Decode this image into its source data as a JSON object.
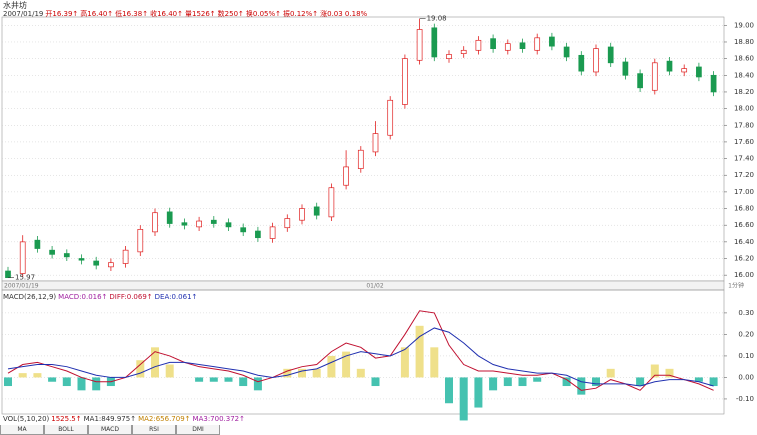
{
  "header": {
    "title": "水井坊",
    "info": [
      "2007/01/19",
      "开16.39↑",
      "高16.40↑",
      "低16.38↑",
      "收16.40↑",
      "量1526↑",
      "数250↑",
      "换0.05%↑",
      "振0.12%↑",
      "涨0.03 0.18%"
    ],
    "x_labels": [
      "2007/01/19",
      "01/02",
      "1分钟"
    ],
    "macd_legend": [
      "MACD(26,12,9)",
      "MACD:0.016↑",
      "DIFF:0.069↑",
      "DEA:0.061↑"
    ],
    "vol_legend": [
      "VOL(5,10,20)",
      "1525.5↑",
      "MA1:849.975↑",
      "MA2:656.709↑",
      "MA3:700.372↑"
    ],
    "tabs": [
      "MA",
      "BOLL",
      "MACD",
      "RSI",
      "DMI"
    ]
  },
  "chart_data": [
    {
      "type": "candlestick",
      "up_color": "#e02020",
      "down_color": "#1a9a50",
      "grid": true,
      "ylim": [
        15.93,
        19.1
      ],
      "yticks": [
        {
          "value": 16.0,
          "label": "16.00"
        },
        {
          "value": 16.2,
          "label": "16.20"
        },
        {
          "value": 16.4,
          "label": "16.40"
        },
        {
          "value": 16.6,
          "label": "16.60"
        },
        {
          "value": 16.8,
          "label": "16.80"
        },
        {
          "value": 17.0,
          "label": "17.00"
        },
        {
          "value": 17.2,
          "label": "17.20"
        },
        {
          "value": 17.4,
          "label": "17.40"
        },
        {
          "value": 17.6,
          "label": "17.60"
        },
        {
          "value": 17.8,
          "label": "17.80"
        },
        {
          "value": 18.0,
          "label": "18.00"
        },
        {
          "value": 18.2,
          "label": "18.20"
        },
        {
          "value": 18.4,
          "label": "18.40"
        },
        {
          "value": 18.6,
          "label": "18.60"
        },
        {
          "value": 18.8,
          "label": "18.80"
        },
        {
          "value": 19.0,
          "label": "19.00"
        }
      ],
      "open": [
        16.05,
        16.02,
        16.42,
        16.3,
        16.26,
        16.2,
        16.17,
        16.1,
        16.14,
        16.28,
        16.52,
        16.76,
        16.63,
        16.58,
        16.66,
        16.63,
        16.57,
        16.53,
        16.44,
        16.57,
        16.66,
        16.82,
        16.7,
        17.08,
        17.28,
        17.48,
        17.68,
        18.05,
        18.58,
        18.97,
        18.6,
        18.66,
        18.7,
        18.84,
        18.7,
        18.79,
        18.7,
        18.86,
        18.74,
        18.64,
        18.44,
        18.74,
        18.56,
        18.42,
        18.22,
        18.57,
        18.44,
        18.5,
        18.4
      ],
      "high": [
        16.1,
        16.48,
        16.47,
        16.35,
        16.31,
        16.25,
        16.22,
        16.2,
        16.35,
        16.6,
        16.8,
        16.81,
        16.68,
        16.7,
        16.71,
        16.68,
        16.62,
        16.58,
        16.63,
        16.73,
        16.85,
        16.87,
        17.1,
        17.5,
        17.55,
        17.85,
        18.15,
        18.65,
        19.08,
        19.02,
        18.7,
        18.75,
        18.87,
        18.89,
        18.83,
        18.84,
        18.9,
        18.91,
        18.79,
        18.69,
        18.77,
        18.79,
        18.61,
        18.47,
        18.6,
        18.62,
        18.53,
        18.55,
        18.45
      ],
      "low": [
        15.97,
        15.98,
        16.27,
        16.2,
        16.17,
        16.13,
        16.07,
        16.05,
        16.09,
        16.23,
        16.47,
        16.57,
        16.55,
        16.53,
        16.57,
        16.53,
        16.47,
        16.4,
        16.39,
        16.52,
        16.61,
        16.67,
        16.65,
        17.03,
        17.23,
        17.43,
        17.63,
        18.0,
        18.53,
        18.57,
        18.55,
        18.61,
        18.65,
        18.67,
        18.65,
        18.67,
        18.65,
        18.7,
        18.57,
        18.4,
        18.39,
        18.5,
        18.35,
        18.2,
        18.17,
        18.4,
        18.39,
        18.33,
        18.15
      ],
      "close": [
        15.97,
        16.4,
        16.32,
        16.25,
        16.22,
        16.18,
        16.12,
        16.15,
        16.3,
        16.55,
        16.75,
        16.62,
        16.6,
        16.65,
        16.62,
        16.58,
        16.52,
        16.45,
        16.58,
        16.68,
        16.8,
        16.72,
        17.05,
        17.3,
        17.5,
        17.7,
        18.1,
        18.6,
        18.95,
        18.62,
        18.65,
        18.7,
        18.82,
        18.72,
        18.78,
        18.72,
        18.85,
        18.75,
        18.62,
        18.45,
        18.72,
        18.55,
        18.4,
        18.25,
        18.55,
        18.45,
        18.48,
        18.38,
        18.2
      ]
    },
    {
      "type": "macd",
      "diff_color": "#c01030",
      "dea_color": "#2030b0",
      "pos_color": "#efe08a",
      "neg_color": "#45c2b0",
      "grid": true,
      "ylim": [
        -0.17,
        0.36
      ],
      "yticks": [
        {
          "value": -0.1,
          "label": "-0.10"
        },
        {
          "value": 0,
          "label": "0.00"
        },
        {
          "value": 0.1,
          "label": "0.10"
        },
        {
          "value": 0.2,
          "label": "0.20"
        },
        {
          "value": 0.3,
          "label": "0.30"
        }
      ],
      "diff": [
        0.02,
        0.06,
        0.07,
        0.05,
        0.03,
        0.0,
        -0.02,
        -0.02,
        0.0,
        0.06,
        0.12,
        0.1,
        0.07,
        0.05,
        0.04,
        0.03,
        0.01,
        -0.02,
        0.0,
        0.03,
        0.05,
        0.06,
        0.12,
        0.16,
        0.14,
        0.09,
        0.1,
        0.2,
        0.31,
        0.3,
        0.15,
        0.06,
        0.03,
        0.03,
        0.02,
        0.01,
        0.01,
        0.02,
        -0.01,
        -0.06,
        -0.05,
        -0.01,
        -0.03,
        -0.06,
        0.01,
        0.01,
        -0.01,
        -0.03,
        -0.06
      ],
      "dea": [
        0.04,
        0.05,
        0.06,
        0.06,
        0.05,
        0.03,
        0.01,
        0.0,
        0.0,
        0.02,
        0.05,
        0.07,
        0.07,
        0.06,
        0.05,
        0.04,
        0.03,
        0.01,
        0.0,
        0.01,
        0.03,
        0.04,
        0.07,
        0.1,
        0.12,
        0.11,
        0.1,
        0.13,
        0.19,
        0.23,
        0.21,
        0.16,
        0.1,
        0.06,
        0.04,
        0.03,
        0.02,
        0.02,
        0.01,
        -0.02,
        -0.03,
        -0.03,
        -0.03,
        -0.04,
        -0.02,
        -0.01,
        -0.01,
        -0.02,
        -0.04
      ],
      "macd": [
        -0.04,
        0.02,
        0.02,
        -0.02,
        -0.04,
        -0.06,
        -0.06,
        -0.04,
        0.0,
        0.08,
        0.14,
        0.06,
        0.0,
        -0.02,
        -0.02,
        -0.02,
        -0.04,
        -0.06,
        0.0,
        0.04,
        0.04,
        0.04,
        0.1,
        0.12,
        0.04,
        -0.04,
        0.0,
        0.14,
        0.24,
        0.14,
        -0.12,
        -0.2,
        -0.14,
        -0.06,
        -0.04,
        -0.04,
        -0.02,
        0.0,
        -0.04,
        -0.08,
        -0.04,
        0.04,
        0.0,
        -0.04,
        0.06,
        0.04,
        0.0,
        -0.02,
        -0.04
      ]
    }
  ]
}
